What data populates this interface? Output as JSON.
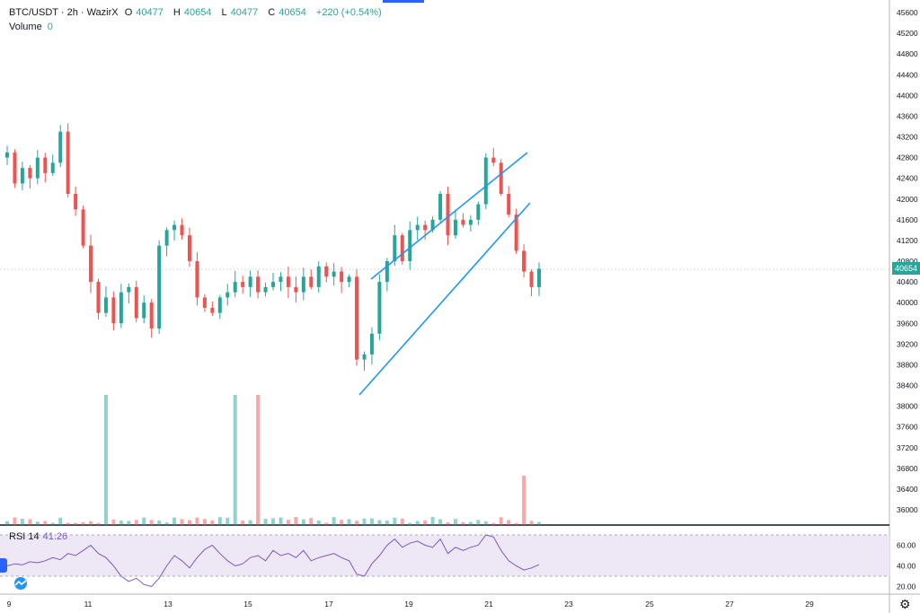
{
  "header": {
    "symbol": "BTC/USDT · 2h · WazirX",
    "open_label": "O",
    "open": "40477",
    "high_label": "H",
    "high": "40654",
    "low_label": "L",
    "low": "40477",
    "close_label": "C",
    "close": "40654",
    "change": "+220 (+0.54%)"
  },
  "volume": {
    "label": "Volume",
    "value": "0"
  },
  "rsi": {
    "label": "RSI 14",
    "value": "41.26"
  },
  "last_price": "40654",
  "colors": {
    "up": "#26a69a",
    "down": "#ef5350",
    "trend": "#2196f3",
    "rsi": "#7e57c2",
    "rsi_band": "#ede7f6"
  },
  "icons": {
    "settings": "gear-icon",
    "logo": "tradingview-logo-icon",
    "side": "chevron-icon"
  },
  "chart_data": [
    {
      "type": "candlestick",
      "title": "BTC/USDT · 2h · WazirX",
      "y_axis_ticks": [
        45600,
        45200,
        44800,
        44400,
        44000,
        43600,
        43200,
        42800,
        42400,
        42000,
        41600,
        41200,
        40800,
        40400,
        40000,
        39600,
        39200,
        38800,
        38400,
        38000,
        37600,
        37200,
        36800,
        36400,
        36000
      ],
      "x_axis_ticks": [
        "9",
        "11",
        "13",
        "15",
        "17",
        "19",
        "21",
        "23",
        "25",
        "27",
        "29"
      ],
      "ylim": [
        35800,
        45800
      ],
      "series_close_path": [
        42900,
        42300,
        42600,
        42400,
        42800,
        42500,
        42700,
        43300,
        42100,
        41800,
        41100,
        40400,
        39800,
        40100,
        39600,
        40200,
        40300,
        39700,
        40000,
        39500,
        41100,
        41400,
        41500,
        41300,
        40800,
        40100,
        39900,
        39800,
        40100,
        40200,
        40400,
        40300,
        40500,
        40200,
        40300,
        40400,
        40500,
        40300,
        40200,
        40500,
        40300,
        40700,
        40500,
        40600,
        40400,
        40500,
        38900,
        39000,
        39400,
        40400,
        40800,
        41300,
        40800,
        41400,
        41500,
        41400,
        41600,
        42100,
        41300,
        41600,
        41500,
        41600,
        41900,
        42800,
        42700,
        42100,
        41700,
        41000,
        40600,
        40300,
        40654
      ],
      "annotations": [
        {
          "type": "trend_line",
          "name": "rising-wedge-upper"
        },
        {
          "type": "trend_line",
          "name": "rising-wedge-lower"
        }
      ]
    },
    {
      "type": "bar",
      "name": "Volume",
      "value_shown": "0"
    },
    {
      "type": "line",
      "name": "RSI 14",
      "current": 41.26,
      "y_axis_ticks": [
        "60.00",
        "40.00",
        "20.00"
      ],
      "band": [
        30,
        70
      ]
    }
  ]
}
